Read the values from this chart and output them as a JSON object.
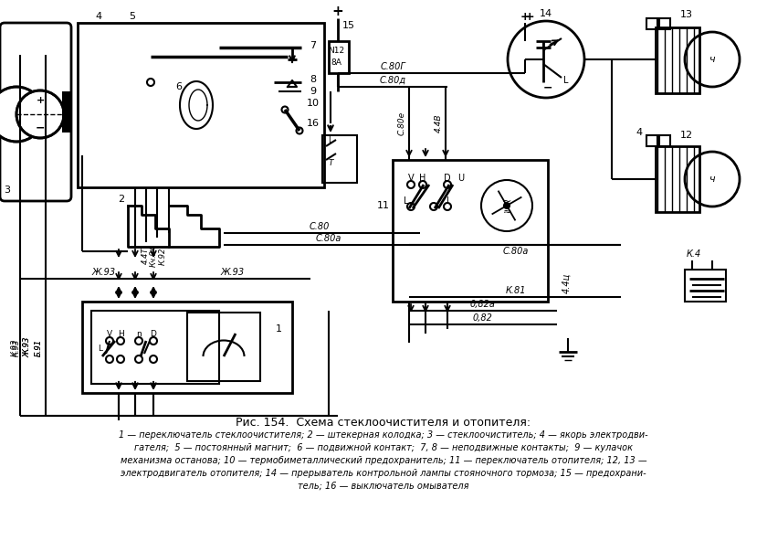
{
  "title": "Рис. 154.  Схема стеклоочистителя и отопителя:",
  "caption_lines": [
    "1 — переключатель стеклоочистителя; 2 — штекерная колодка; 3 — стеклоочиститель; 4 — якорь электродви-",
    "гателя;  5 — постоянный магнит;  6 — подвижной контакт;  7, 8 — неподвижные контакты;  9 — кулачок",
    "механизма останова; 10 — термобиметаллический предохранитель; 11 — переключатель отопителя; 12, 13 —",
    "электродвигатель отопителя; 14 — прерыватель контрольной лампы стояночного тормоза; 15 — предохрани-",
    "тель; 16 — выключатель омывателя"
  ],
  "bg_color": "#ffffff",
  "lc": "#000000",
  "tc": "#000000"
}
